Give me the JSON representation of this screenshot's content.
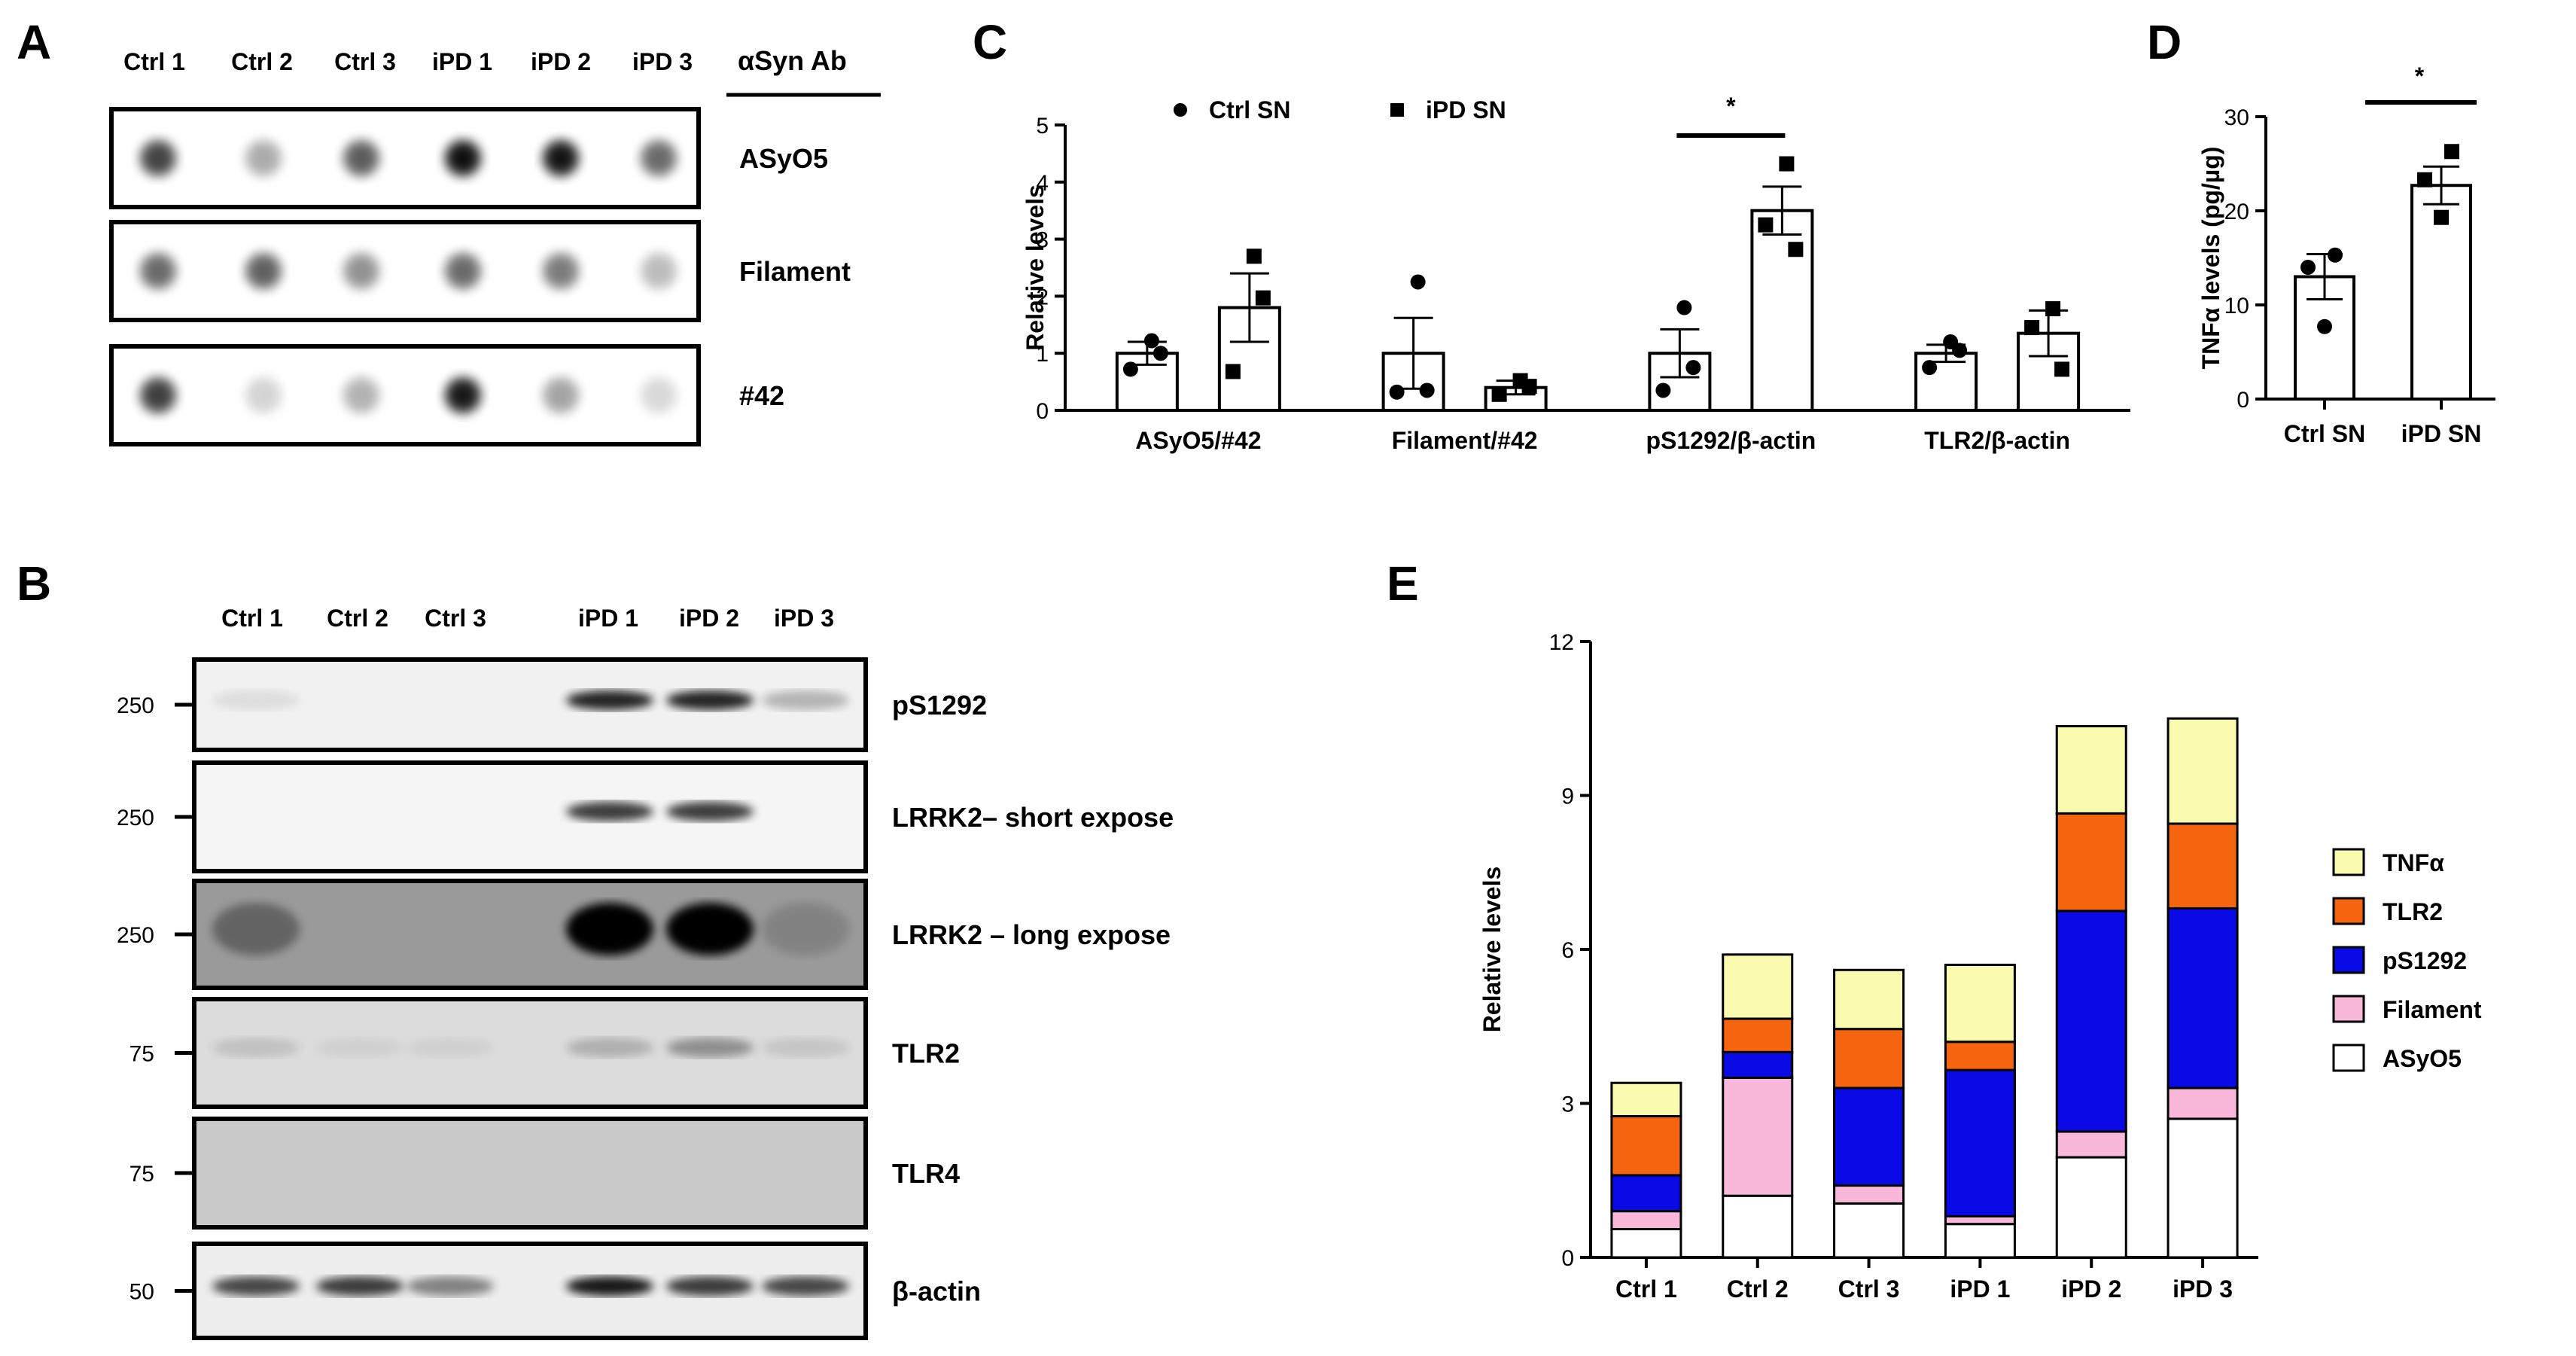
{
  "panels": {
    "A": {
      "letter": "A",
      "lanes": [
        "Ctrl 1",
        "Ctrl 2",
        "Ctrl 3",
        "iPD 1",
        "iPD 2",
        "iPD 3"
      ],
      "antibody_header": "αSyn Ab",
      "rows": [
        {
          "label": "ASyO5",
          "intensities": [
            0.78,
            0.35,
            0.68,
            1.0,
            0.98,
            0.62
          ]
        },
        {
          "label": "Filament",
          "intensities": [
            0.62,
            0.66,
            0.45,
            0.62,
            0.55,
            0.28
          ]
        },
        {
          "label": "#42",
          "intensities": [
            0.8,
            0.18,
            0.32,
            0.96,
            0.38,
            0.16
          ]
        }
      ]
    },
    "B": {
      "letter": "B",
      "lanes": [
        "Ctrl 1",
        "Ctrl 2",
        "Ctrl 3",
        "iPD 1",
        "iPD 2",
        "iPD 3"
      ],
      "blots": [
        {
          "label": "pS1292",
          "marker": "250",
          "background": "#f1f1f1"
        },
        {
          "label": "LRRK2– short expose",
          "marker": "250",
          "background": "#f5f5f5"
        },
        {
          "label": "LRRK2 – long expose",
          "marker": "250",
          "background": "#9a9a9a"
        },
        {
          "label": "TLR2",
          "marker": "75",
          "background": "#dcdcdc"
        },
        {
          "label": "TLR4",
          "marker": "75",
          "background": "#c9c9c9"
        },
        {
          "label": "β-actin",
          "marker": "50",
          "background": "#ededed"
        }
      ]
    }
  },
  "chart_data": [
    {
      "panel": "C",
      "type": "bar",
      "ylabel": "Relative levels",
      "ylim": [
        0,
        5
      ],
      "yticks": [
        0,
        1,
        2,
        3,
        4,
        5
      ],
      "categories": [
        "ASyO5/#42",
        "Filament/#42",
        "pS1292/β-actin",
        "TLR2/β-actin"
      ],
      "series": [
        {
          "name": "Ctrl SN",
          "marker": "circle",
          "values": [
            1.0,
            1.0,
            1.0,
            1.0
          ],
          "sem": [
            0.2,
            0.62,
            0.42,
            0.15
          ],
          "points": [
            [
              1.22,
              0.72,
              1.0
            ],
            [
              2.25,
              0.32,
              0.35
            ],
            [
              1.8,
              0.35,
              0.75
            ],
            [
              1.2,
              0.75,
              1.05
            ]
          ]
        },
        {
          "name": "iPD SN",
          "marker": "square",
          "values": [
            1.8,
            0.4,
            3.5,
            1.35
          ],
          "sem": [
            0.6,
            0.12,
            0.42,
            0.4
          ],
          "points": [
            [
              2.7,
              0.68,
              1.97
            ],
            [
              0.52,
              0.28,
              0.42
            ],
            [
              4.32,
              3.25,
              2.82
            ],
            [
              1.78,
              1.45,
              0.72
            ]
          ]
        }
      ],
      "significance": [
        {
          "category": "pS1292/β-actin",
          "label": "*"
        }
      ]
    },
    {
      "panel": "D",
      "type": "bar",
      "ylabel": "TNFα levels (pg/µg)",
      "ylim": [
        0,
        30
      ],
      "yticks": [
        0,
        10,
        20,
        30
      ],
      "categories": [
        "Ctrl SN",
        "iPD SN"
      ],
      "values": [
        13,
        22.7
      ],
      "sem": [
        2.4,
        2.0
      ],
      "points": [
        [
          15.3,
          14.0,
          7.7
        ],
        [
          26.3,
          23.3,
          19.3
        ]
      ],
      "markers": [
        "circle",
        "square"
      ],
      "significance": [
        {
          "between": [
            "Ctrl SN",
            "iPD SN"
          ],
          "label": "*"
        }
      ]
    },
    {
      "panel": "E",
      "type": "bar",
      "stacked": true,
      "ylabel": "Relative levels",
      "ylim": [
        0,
        12
      ],
      "yticks": [
        0,
        3,
        6,
        9,
        12
      ],
      "categories": [
        "Ctrl 1",
        "Ctrl 2",
        "Ctrl 3",
        "iPD 1",
        "iPD 2",
        "iPD 3"
      ],
      "series": [
        {
          "name": "ASyO5",
          "color": "#ffffff",
          "values": [
            0.55,
            1.2,
            1.05,
            0.65,
            1.95,
            2.7
          ]
        },
        {
          "name": "Filament",
          "color": "#f9b8da",
          "values": [
            0.35,
            2.3,
            0.35,
            0.15,
            0.5,
            0.6
          ]
        },
        {
          "name": "pS1292",
          "color": "#0a0ae6",
          "values": [
            0.7,
            0.5,
            1.9,
            2.85,
            4.3,
            3.5
          ]
        },
        {
          "name": "TLR2",
          "color": "#f5640f",
          "values": [
            1.15,
            0.65,
            1.15,
            0.55,
            1.9,
            1.65
          ]
        },
        {
          "name": "TNFα",
          "color": "#fbfbb0",
          "values": [
            0.65,
            1.25,
            1.15,
            1.5,
            1.7,
            2.05
          ]
        }
      ],
      "legend_order": [
        "TNFα",
        "TLR2",
        "pS1292",
        "Filament",
        "ASyO5"
      ],
      "legend_position": "right"
    }
  ]
}
